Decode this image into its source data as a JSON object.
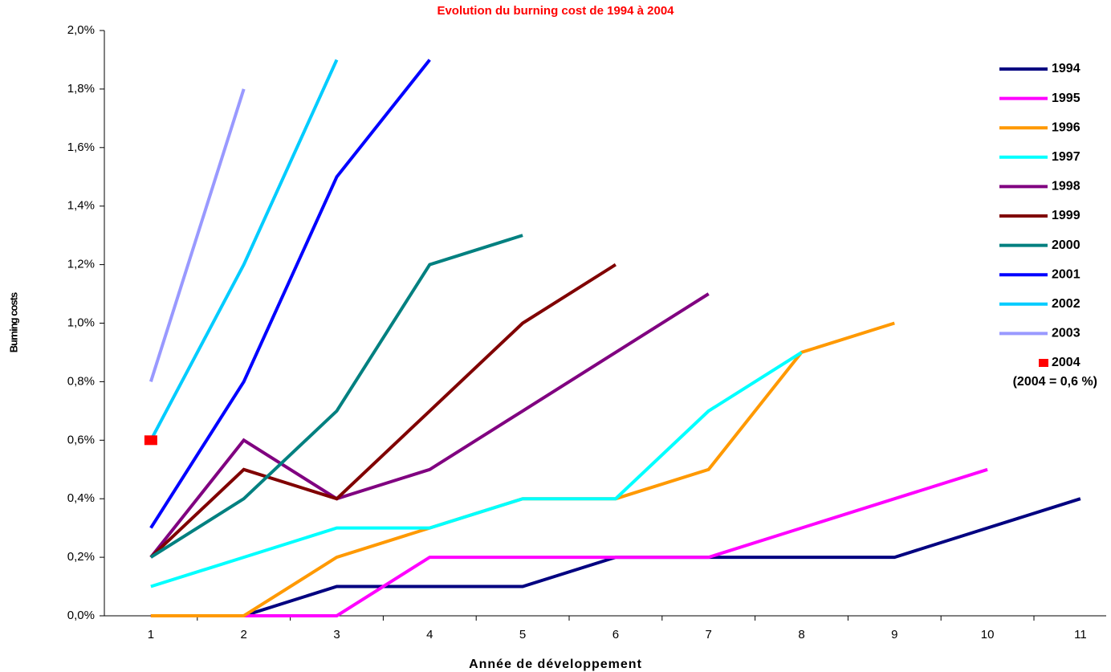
{
  "chart_data": {
    "type": "line",
    "title": "Evolution du burning cost de 1994 à 2004",
    "x_label": "Année de développement",
    "y_label": "Burning costs",
    "legend_note": "(2004 = 0,6 %)",
    "legend": "right",
    "categories": [
      "1",
      "2",
      "3",
      "4",
      "5",
      "6",
      "7",
      "8",
      "9",
      "10",
      "11"
    ],
    "ylim": [
      0,
      2.0
    ],
    "yticks": [
      {
        "value": 0,
        "label": "0,0%"
      },
      {
        "value": 0.2,
        "label": "0,2%"
      },
      {
        "value": 0.4,
        "label": "0,4%"
      },
      {
        "value": 0.6,
        "label": "0,6%"
      },
      {
        "value": 0.8,
        "label": "0,8%"
      },
      {
        "value": 1.0,
        "label": "1,0%"
      },
      {
        "value": 1.2,
        "label": "1,2%"
      },
      {
        "value": 1.4,
        "label": "1,4%"
      },
      {
        "value": 1.6,
        "label": "1,6%"
      },
      {
        "value": 1.8,
        "label": "1,8%"
      },
      {
        "value": 2.0,
        "label": "2,0%"
      }
    ],
    "series": [
      {
        "name": "1994",
        "color": "#000080",
        "values": [
          0,
          0,
          0.1,
          0.1,
          0.1,
          0.2,
          0.2,
          0.2,
          0.2,
          0.3,
          0.4
        ]
      },
      {
        "name": "1995",
        "color": "#ff00ff",
        "values": [
          0,
          0,
          0,
          0.2,
          0.2,
          0.2,
          0.2,
          0.3,
          0.4,
          0.5,
          null
        ]
      },
      {
        "name": "1996",
        "color": "#ff9900",
        "values": [
          0,
          0,
          0.2,
          0.3,
          0.4,
          0.4,
          0.5,
          0.9,
          1.0,
          null,
          null
        ]
      },
      {
        "name": "1997",
        "color": "#00ffff",
        "values": [
          0.1,
          0.2,
          0.3,
          0.3,
          0.4,
          0.4,
          0.7,
          0.9,
          null,
          null,
          null
        ]
      },
      {
        "name": "1998",
        "color": "#800080",
        "values": [
          0.2,
          0.6,
          0.4,
          0.5,
          0.7,
          0.9,
          1.1,
          null,
          null,
          null,
          null
        ]
      },
      {
        "name": "1999",
        "color": "#800000",
        "values": [
          0.2,
          0.5,
          0.4,
          0.7,
          1.0,
          1.2,
          null,
          null,
          null,
          null,
          null
        ]
      },
      {
        "name": "2000",
        "color": "#008080",
        "values": [
          0.2,
          0.4,
          0.7,
          1.2,
          1.3,
          null,
          null,
          null,
          null,
          null,
          null
        ]
      },
      {
        "name": "2001",
        "color": "#0000ff",
        "values": [
          0.3,
          0.8,
          1.5,
          1.9,
          null,
          null,
          null,
          null,
          null,
          null,
          null
        ]
      },
      {
        "name": "2002",
        "color": "#00ccff",
        "values": [
          0.6,
          1.2,
          1.9,
          null,
          null,
          null,
          null,
          null,
          null,
          null,
          null
        ]
      },
      {
        "name": "2003",
        "color": "#9999ff",
        "values": [
          0.8,
          1.8,
          null,
          null,
          null,
          null,
          null,
          null,
          null,
          null,
          null
        ]
      },
      {
        "name": "2004",
        "color": "#ff0000",
        "marker": "square",
        "values": [
          0.6,
          null,
          null,
          null,
          null,
          null,
          null,
          null,
          null,
          null,
          null
        ]
      }
    ]
  }
}
